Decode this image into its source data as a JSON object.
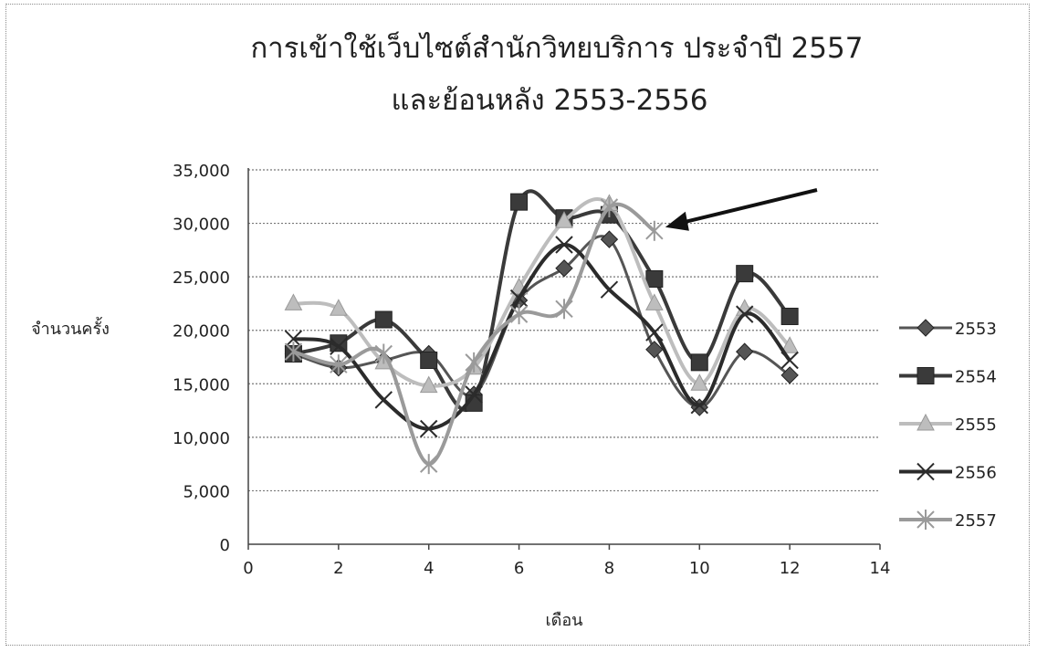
{
  "chart_data": {
    "type": "scatter",
    "mode": "lines+markers (smoothed)",
    "title_lines": [
      "การเข้าใช้เว็บไซต์สำนักวิทยบริการ ประจำปี 2557",
      "และย้อนหลัง 2553-2556"
    ],
    "xlabel": "เดือน",
    "ylabel": "จำนวนครั้ง",
    "xlim": [
      0,
      14
    ],
    "ylim": [
      0,
      35000
    ],
    "x_ticks": [
      0,
      2,
      4,
      6,
      8,
      10,
      12,
      14
    ],
    "y_ticks": [
      0,
      5000,
      10000,
      15000,
      20000,
      25000,
      30000,
      35000
    ],
    "y_tick_labels": [
      "0",
      "5,000",
      "10,000",
      "15,000",
      "20,000",
      "25,000",
      "30,000",
      "35,000"
    ],
    "grid": "horizontal dotted",
    "legend": "right",
    "annotation": "arrow pointing to 2557 at month 9",
    "series": [
      {
        "name": "2553",
        "marker": "diamond",
        "color": "#555555",
        "width": 3,
        "x": [
          1,
          2,
          3,
          4,
          5,
          6,
          7,
          8,
          9,
          10,
          11,
          12
        ],
        "y": [
          17800,
          16500,
          17200,
          17800,
          14000,
          22800,
          25800,
          28500,
          18200,
          12800,
          18000,
          15800
        ]
      },
      {
        "name": "2554",
        "marker": "square",
        "color": "#3a3a3a",
        "width": 4,
        "x": [
          1,
          2,
          3,
          4,
          5,
          6,
          7,
          8,
          9,
          10,
          11,
          12
        ],
        "y": [
          17800,
          18800,
          21000,
          17200,
          13200,
          32000,
          30500,
          30800,
          24800,
          17000,
          25300,
          21300
        ]
      },
      {
        "name": "2555",
        "marker": "triangle",
        "color": "#bdbdbd",
        "width": 4,
        "x": [
          1,
          2,
          3,
          4,
          5,
          6,
          7,
          8,
          9,
          10,
          11,
          12
        ],
        "y": [
          22500,
          22000,
          17000,
          14800,
          16500,
          24000,
          30200,
          31800,
          22500,
          15000,
          22000,
          18500
        ]
      },
      {
        "name": "2556",
        "marker": "x",
        "color": "#2b2b2b",
        "width": 4,
        "x": [
          1,
          2,
          3,
          4,
          5,
          6,
          7,
          8,
          9,
          10,
          11,
          12
        ],
        "y": [
          19200,
          18500,
          13500,
          10800,
          14000,
          23000,
          28000,
          23800,
          19800,
          13000,
          21500,
          17200
        ]
      },
      {
        "name": "2557",
        "marker": "star",
        "color": "#9a9a9a",
        "width": 4,
        "x": [
          1,
          2,
          3,
          4,
          5,
          6,
          7,
          8,
          9
        ],
        "y": [
          18000,
          16800,
          17800,
          7500,
          17000,
          21500,
          22000,
          31500,
          29300
        ]
      }
    ]
  }
}
